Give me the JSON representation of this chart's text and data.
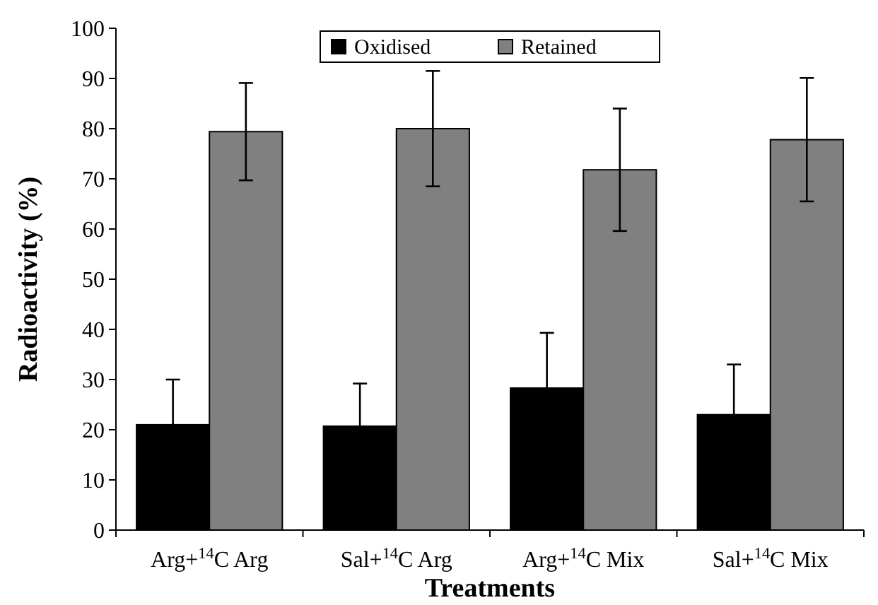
{
  "chart_data": {
    "type": "bar",
    "xlabel": "Treatments",
    "ylabel": "Radioactivity (%)",
    "categories": [
      "Arg+$^{14}$C Arg",
      "Sal+$^{14}$C Arg",
      "Arg+$^{14}$C Mix",
      "Sal+$^{14}$C Mix"
    ],
    "series": [
      {
        "name": "Oxidised",
        "color": "#000000",
        "values": [
          21,
          20.7,
          28.3,
          23
        ],
        "errors": [
          9,
          8.5,
          11,
          10
        ]
      },
      {
        "name": "Retained",
        "color": "#808080",
        "values": [
          79.4,
          80,
          71.8,
          77.8
        ],
        "errors": [
          9.7,
          11.5,
          12.2,
          12.3
        ]
      }
    ],
    "ylim": [
      0,
      100
    ],
    "yticks": [
      0,
      10,
      20,
      30,
      40,
      50,
      60,
      70,
      80,
      90,
      100
    ],
    "legend": "top",
    "grid": false
  }
}
